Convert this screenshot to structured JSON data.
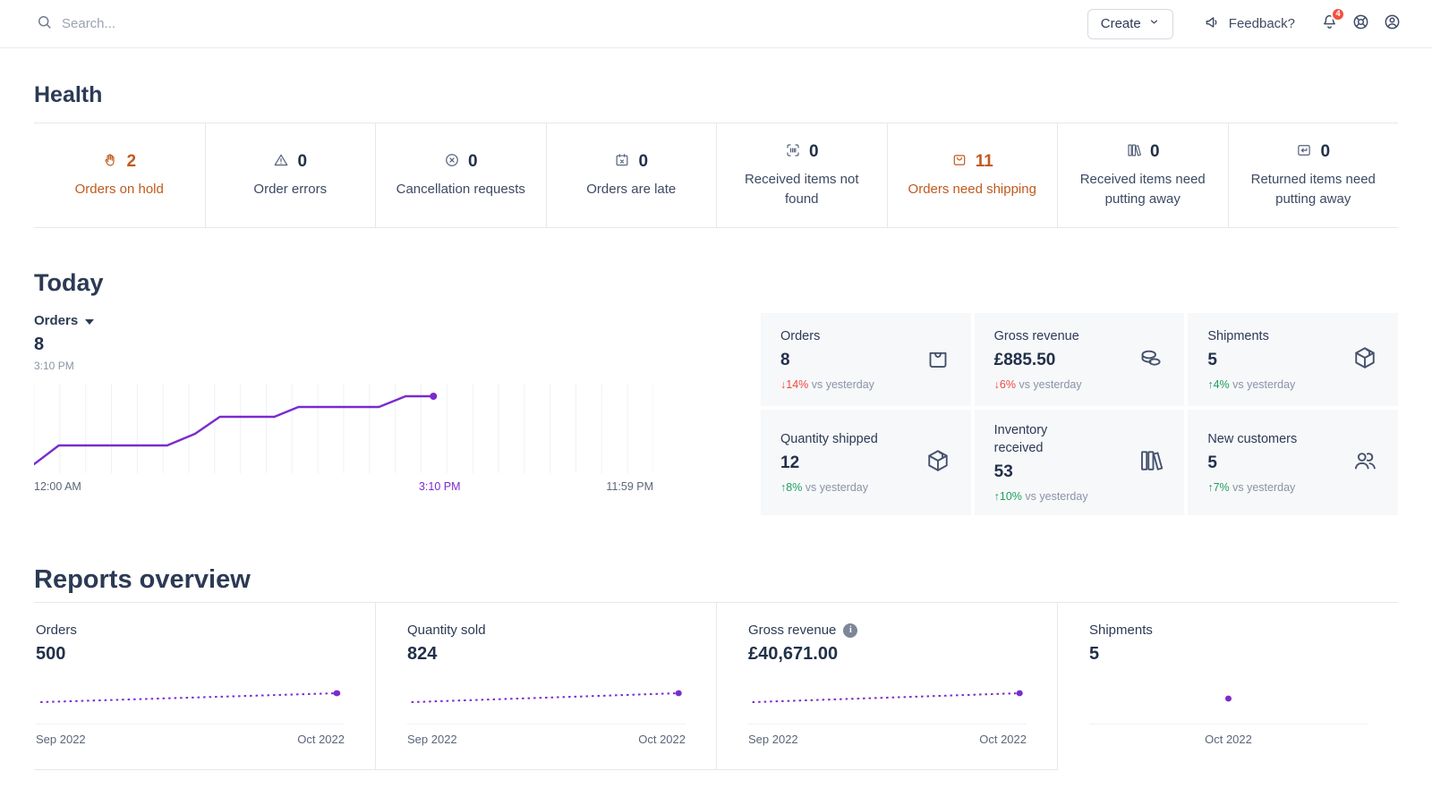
{
  "topbar": {
    "search_placeholder": "Search...",
    "create_label": "Create",
    "feedback_label": "Feedback?",
    "notification_count": "4"
  },
  "health": {
    "title": "Health",
    "cards": [
      {
        "icon": "hand",
        "value": "2",
        "label": "Orders on hold",
        "alert": true
      },
      {
        "icon": "warning-triangle",
        "value": "0",
        "label": "Order errors",
        "alert": false
      },
      {
        "icon": "circle-x",
        "value": "0",
        "label": "Cancellation requests",
        "alert": false
      },
      {
        "icon": "calendar-x",
        "value": "0",
        "label": "Orders are late",
        "alert": false
      },
      {
        "icon": "barcode-scan",
        "value": "0",
        "label": "Received items not found",
        "alert": false
      },
      {
        "icon": "tray",
        "value": "11",
        "label": "Orders need shipping",
        "alert": true
      },
      {
        "icon": "shelf",
        "value": "0",
        "label": "Received items need putting away",
        "alert": false
      },
      {
        "icon": "return-box",
        "value": "0",
        "label": "Returned items need putting away",
        "alert": false
      }
    ]
  },
  "today": {
    "title": "Today",
    "selector_label": "Orders",
    "selector_value": "8",
    "selector_time": "3:10 PM",
    "chart": {
      "type": "line",
      "metric": "Orders",
      "current_value": 8,
      "current_time": "3:10 PM",
      "x_start_label": "12:00 AM",
      "x_current_label": "3:10 PM",
      "x_end_label": "11:59 PM",
      "gridlines": 24,
      "points": [
        [
          0,
          90
        ],
        [
          0.04,
          69
        ],
        [
          0.215,
          69
        ],
        [
          0.26,
          56
        ],
        [
          0.3,
          37
        ],
        [
          0.388,
          37
        ],
        [
          0.427,
          26
        ],
        [
          0.557,
          26
        ],
        [
          0.6,
          14
        ],
        [
          0.645,
          14
        ]
      ],
      "end_dot": [
        0.645,
        14
      ]
    },
    "metrics": [
      {
        "label": "Orders",
        "value": "8",
        "direction": "down",
        "delta": "14%",
        "suffix": "vs yesterday",
        "icon": "shopping-bag"
      },
      {
        "label": "Gross revenue",
        "value": "£885.50",
        "direction": "down",
        "delta": "6%",
        "suffix": "vs yesterday",
        "icon": "coins"
      },
      {
        "label": "Shipments",
        "value": "5",
        "direction": "up",
        "delta": "4%",
        "suffix": "vs yesterday",
        "icon": "cube"
      },
      {
        "label": "Quantity shipped",
        "value": "12",
        "direction": "up",
        "delta": "8%",
        "suffix": "vs yesterday",
        "icon": "cube"
      },
      {
        "label": "Inventory received",
        "value": "53",
        "direction": "up",
        "delta": "10%",
        "suffix": "vs yesterday",
        "icon": "shelf"
      },
      {
        "label": "New customers",
        "value": "5",
        "direction": "up",
        "delta": "7%",
        "suffix": "vs yesterday",
        "icon": "people"
      }
    ]
  },
  "reports": {
    "title": "Reports overview",
    "cards": [
      {
        "label": "Orders",
        "value": "500",
        "info": false,
        "x_labels": [
          "Sep 2022",
          "Oct 2022"
        ],
        "line": [
          [
            0.015,
            30
          ],
          [
            0.975,
            20
          ]
        ],
        "dot": [
          0.975,
          20
        ],
        "bordered": true
      },
      {
        "label": "Quantity sold",
        "value": "824",
        "info": false,
        "x_labels": [
          "Sep 2022",
          "Oct 2022"
        ],
        "line": [
          [
            0.015,
            30
          ],
          [
            0.975,
            20
          ]
        ],
        "dot": [
          0.975,
          20
        ],
        "bordered": true
      },
      {
        "label": "Gross revenue",
        "value": "£40,671.00",
        "info": true,
        "x_labels": [
          "Sep 2022",
          "Oct 2022"
        ],
        "line": [
          [
            0.015,
            30
          ],
          [
            0.975,
            20
          ]
        ],
        "dot": [
          0.975,
          20
        ],
        "bordered": true
      },
      {
        "label": "Shipments",
        "value": "5",
        "info": false,
        "x_labels": [
          "Oct 2022"
        ],
        "line": null,
        "dot": [
          0.5,
          26
        ],
        "bordered": false
      }
    ]
  },
  "colors": {
    "accent_purple": "#7a2bce",
    "alert_orange": "#c05a1e",
    "delta_red": "#ed4a3f",
    "delta_green": "#1fa05e",
    "badge_red": "#f25041"
  }
}
